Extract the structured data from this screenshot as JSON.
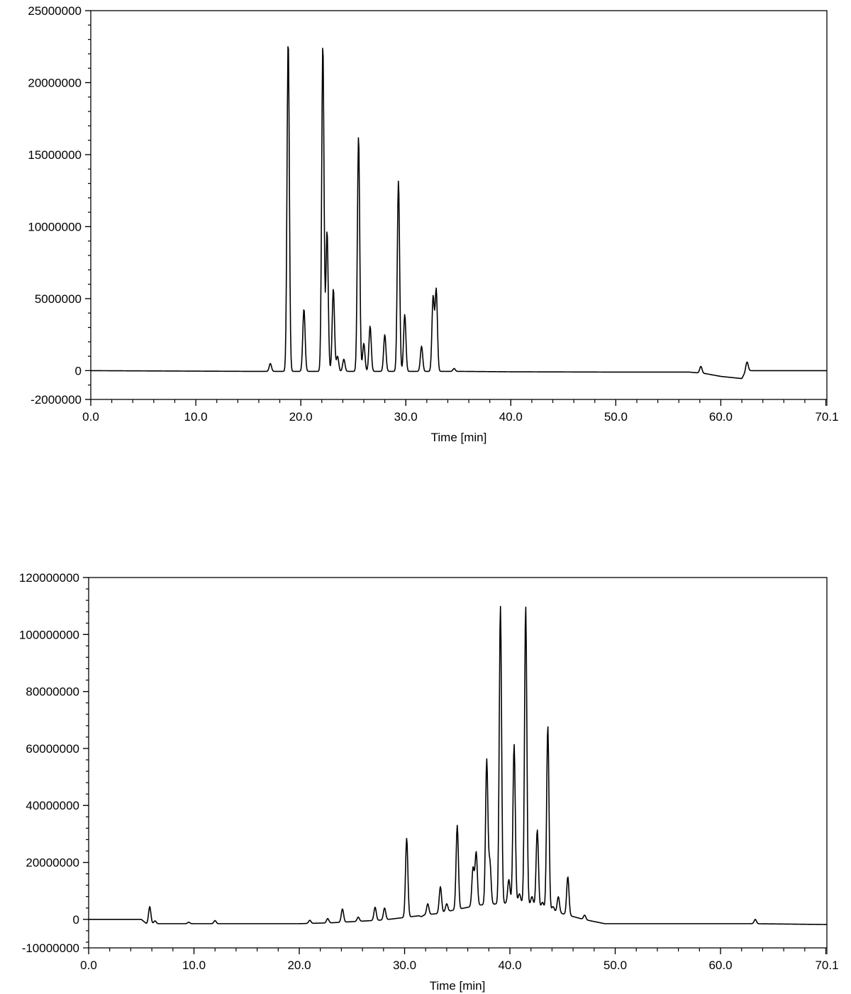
{
  "chart_data": [
    {
      "type": "line",
      "xlabel": "Time [min]",
      "ylabel": "",
      "xlim": [
        0.0,
        70.1
      ],
      "ylim": [
        -2000000,
        25000000
      ],
      "x_ticks": [
        "0.0",
        "10.0",
        "20.0",
        "30.0",
        "40.0",
        "50.0",
        "60.0",
        "70.1"
      ],
      "y_ticks": [
        "25000000",
        "20000000",
        "15000000",
        "10000000",
        "5000000",
        "0",
        "-2000000"
      ],
      "baseline": [
        [
          0,
          0
        ],
        [
          15,
          -50000
        ],
        [
          35,
          -50000
        ],
        [
          40,
          -80000
        ],
        [
          50,
          -100000
        ],
        [
          57,
          -100000
        ],
        [
          58.5,
          -200000
        ],
        [
          60,
          -400000
        ],
        [
          62,
          -550000
        ],
        [
          62.4,
          0
        ],
        [
          65,
          0
        ],
        [
          70.1,
          0
        ]
      ],
      "series": [
        {
          "peaks": [
            {
              "x": 17.1,
              "y": 500000
            },
            {
              "x": 18.8,
              "y": 23000000
            },
            {
              "x": 20.3,
              "y": 4300000
            },
            {
              "x": 22.1,
              "y": 22700000
            },
            {
              "x": 22.5,
              "y": 9700000
            },
            {
              "x": 23.1,
              "y": 5700000
            },
            {
              "x": 23.5,
              "y": 1000000
            },
            {
              "x": 24.1,
              "y": 800000
            },
            {
              "x": 25.5,
              "y": 16300000
            },
            {
              "x": 26.0,
              "y": 1900000
            },
            {
              "x": 26.6,
              "y": 3100000
            },
            {
              "x": 28.0,
              "y": 2500000
            },
            {
              "x": 29.3,
              "y": 13200000
            },
            {
              "x": 29.9,
              "y": 3900000
            },
            {
              "x": 31.5,
              "y": 1700000
            },
            {
              "x": 32.6,
              "y": 5100000
            },
            {
              "x": 32.9,
              "y": 5600000
            },
            {
              "x": 34.6,
              "y": 150000
            },
            {
              "x": 58.1,
              "y": 300000
            },
            {
              "x": 62.5,
              "y": 600000
            }
          ]
        }
      ]
    },
    {
      "type": "line",
      "xlabel": "Time [min]",
      "ylabel": "",
      "xlim": [
        0.0,
        70.1
      ],
      "ylim": [
        -10000000,
        120000000
      ],
      "x_ticks": [
        "0.0",
        "10.0",
        "20.0",
        "30.0",
        "40.0",
        "50.0",
        "60.0",
        "70.1"
      ],
      "y_ticks": [
        "120000000",
        "100000000",
        "80000000",
        "60000000",
        "40000000",
        "20000000",
        "0",
        "-10000000"
      ],
      "baseline": [
        [
          0,
          0
        ],
        [
          5.0,
          0
        ],
        [
          5.5,
          -1500000
        ],
        [
          7,
          -1500000
        ],
        [
          20,
          -1500000
        ],
        [
          23,
          -1200000
        ],
        [
          28,
          -200000
        ],
        [
          33,
          2000000
        ],
        [
          37,
          5000000
        ],
        [
          41,
          6000000
        ],
        [
          44,
          3000000
        ],
        [
          47,
          0
        ],
        [
          49,
          -1500000
        ],
        [
          60,
          -1500000
        ],
        [
          63,
          -1500000
        ],
        [
          70.1,
          -1800000
        ]
      ],
      "series": [
        {
          "peaks": [
            {
              "x": 5.8,
              "y": 4500000
            },
            {
              "x": 6.3,
              "y": -500000
            },
            {
              "x": 9.5,
              "y": -1000000
            },
            {
              "x": 12.0,
              "y": -400000
            },
            {
              "x": 21.0,
              "y": -300000
            },
            {
              "x": 22.7,
              "y": 300000
            },
            {
              "x": 24.1,
              "y": 3700000
            },
            {
              "x": 25.6,
              "y": 800000
            },
            {
              "x": 27.2,
              "y": 4300000
            },
            {
              "x": 28.1,
              "y": 4000000
            },
            {
              "x": 30.2,
              "y": 28500000
            },
            {
              "x": 31.6,
              "y": 1000000
            },
            {
              "x": 32.2,
              "y": 5500000
            },
            {
              "x": 33.4,
              "y": 11500000
            },
            {
              "x": 34.0,
              "y": 5500000
            },
            {
              "x": 35.0,
              "y": 33000000
            },
            {
              "x": 36.5,
              "y": 18000000
            },
            {
              "x": 36.8,
              "y": 23500000
            },
            {
              "x": 37.8,
              "y": 56000000
            },
            {
              "x": 38.1,
              "y": 20000000
            },
            {
              "x": 39.1,
              "y": 110000000
            },
            {
              "x": 39.9,
              "y": 14000000
            },
            {
              "x": 40.4,
              "y": 61500000
            },
            {
              "x": 40.9,
              "y": 9000000
            },
            {
              "x": 41.5,
              "y": 110000000
            },
            {
              "x": 42.1,
              "y": 8000000
            },
            {
              "x": 42.6,
              "y": 31500000
            },
            {
              "x": 43.1,
              "y": 6000000
            },
            {
              "x": 43.6,
              "y": 68000000
            },
            {
              "x": 44.1,
              "y": 4500000
            },
            {
              "x": 44.6,
              "y": 8000000
            },
            {
              "x": 45.5,
              "y": 15000000
            },
            {
              "x": 46.5,
              "y": 500000
            },
            {
              "x": 47.1,
              "y": 1500000
            },
            {
              "x": 63.3,
              "y": 0
            }
          ]
        }
      ]
    }
  ]
}
